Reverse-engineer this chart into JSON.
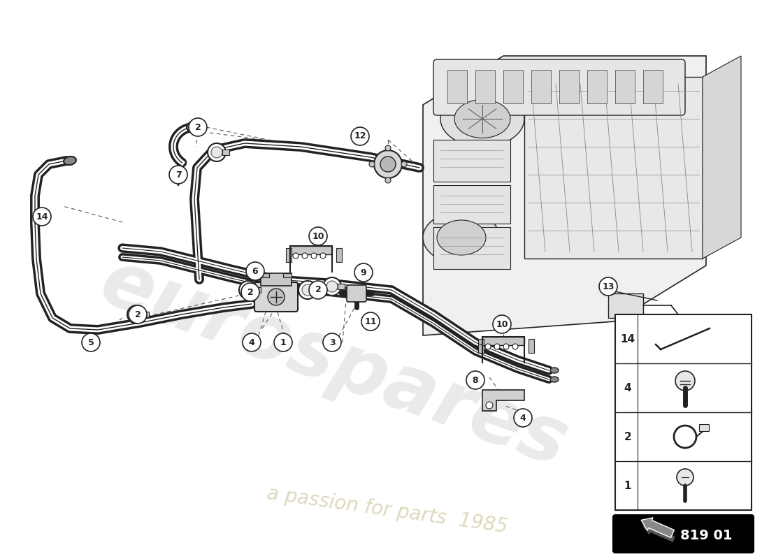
{
  "bg_color": "#ffffff",
  "part_number": "819 01",
  "watermark_text1": "eurospares",
  "watermark_text2": "a passion for parts  1985",
  "line_color": "#222222",
  "pipe_color": "#444444",
  "light_gray": "#cccccc",
  "mid_gray": "#888888",
  "dark_gray": "#555555",
  "watermark_color1": "#d8d8d8",
  "watermark_color2": "#d0c8a0"
}
